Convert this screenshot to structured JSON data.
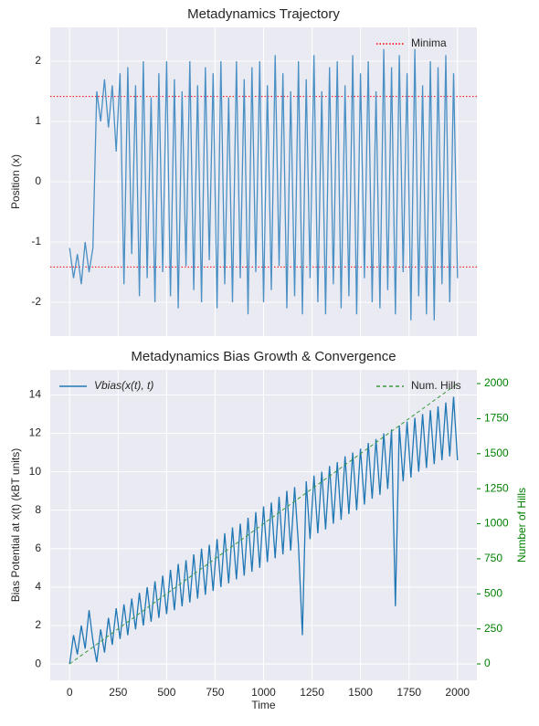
{
  "chart_data": [
    {
      "type": "line",
      "title": "Metadynamics Trajectory",
      "ylabel": "Position (x)",
      "xlim": [
        -100,
        2100
      ],
      "xticks": [
        0,
        250,
        500,
        750,
        1000,
        1250,
        1500,
        1750,
        2000
      ],
      "show_xtick_labels": false,
      "ylim": [
        -2.56,
        2.56
      ],
      "yticks": [
        -2,
        -1,
        0,
        1,
        2
      ],
      "grid": true,
      "legend": "upper right",
      "reference_lines": {
        "name": "Minima",
        "color": "#ff0000",
        "values": [
          1.414,
          -1.414
        ]
      },
      "x": [
        0,
        20,
        40,
        60,
        80,
        100,
        120,
        140,
        160,
        180,
        200,
        220,
        240,
        260,
        280,
        300,
        320,
        340,
        360,
        380,
        400,
        420,
        440,
        460,
        480,
        500,
        520,
        540,
        560,
        580,
        600,
        620,
        640,
        660,
        680,
        700,
        720,
        740,
        760,
        780,
        800,
        820,
        840,
        860,
        880,
        900,
        920,
        940,
        960,
        980,
        1000,
        1020,
        1040,
        1060,
        1080,
        1100,
        1120,
        1140,
        1160,
        1180,
        1200,
        1220,
        1240,
        1260,
        1280,
        1300,
        1320,
        1340,
        1360,
        1380,
        1400,
        1420,
        1440,
        1460,
        1480,
        1500,
        1520,
        1540,
        1560,
        1580,
        1600,
        1620,
        1640,
        1660,
        1680,
        1700,
        1720,
        1740,
        1760,
        1780,
        1800,
        1820,
        1840,
        1860,
        1880,
        1900,
        1920,
        1940,
        1960,
        1980,
        2000
      ],
      "series": [
        {
          "color": "#4a90c4",
          "values": [
            -1.1,
            -1.6,
            -1.2,
            -1.7,
            -1.0,
            -1.5,
            -1.1,
            1.5,
            1.0,
            1.7,
            0.9,
            1.6,
            0.5,
            1.8,
            -1.7,
            1.9,
            -1.2,
            1.6,
            -1.9,
            2.0,
            -1.6,
            1.4,
            -2.0,
            1.8,
            -1.5,
            2.0,
            -1.9,
            1.7,
            -2.1,
            1.5,
            -1.4,
            2.0,
            -1.8,
            1.6,
            -2.0,
            1.9,
            -1.3,
            1.8,
            -2.1,
            2.0,
            -1.7,
            1.4,
            -2.0,
            2.0,
            -1.6,
            1.7,
            -2.2,
            1.9,
            -1.5,
            2.0,
            -2.0,
            1.6,
            -1.8,
            2.1,
            -1.4,
            1.8,
            -2.1,
            1.5,
            -1.9,
            2.0,
            -2.2,
            1.7,
            -1.6,
            2.1,
            -2.0,
            1.5,
            -2.2,
            1.9,
            -1.7,
            2.0,
            -2.1,
            1.6,
            -1.9,
            2.1,
            -2.2,
            1.8,
            -1.6,
            2.0,
            -2.0,
            1.5,
            -2.1,
            2.2,
            -1.8,
            1.9,
            -2.2,
            2.1,
            -1.5,
            1.8,
            -2.3,
            2.2,
            -1.9,
            1.6,
            -2.2,
            2.0,
            -2.3,
            1.9,
            -1.7,
            2.1,
            -2.0,
            1.8,
            -1.6
          ]
        }
      ]
    },
    {
      "type": "line",
      "title": "Metadynamics Bias Growth & Convergence",
      "xlabel": "Time",
      "ylabel": "Bias Potential at x(t) (kBT units)",
      "y2label": "Number of Hills",
      "xlim": [
        -100,
        2100
      ],
      "xticks": [
        0,
        250,
        500,
        750,
        1000,
        1250,
        1500,
        1750,
        2000
      ],
      "show_xtick_labels": true,
      "ylim": [
        -0.85,
        15.3
      ],
      "yticks": [
        0,
        2,
        4,
        6,
        8,
        10,
        12,
        14
      ],
      "y2lim": [
        -117,
        2098
      ],
      "y2ticks": [
        0,
        250,
        500,
        750,
        1000,
        1250,
        1500,
        1750,
        2000
      ],
      "y2color": "#008000",
      "grid": true,
      "x": [
        0,
        20,
        40,
        60,
        80,
        100,
        120,
        140,
        160,
        180,
        200,
        220,
        240,
        260,
        280,
        300,
        320,
        340,
        360,
        380,
        400,
        420,
        440,
        460,
        480,
        500,
        520,
        540,
        560,
        580,
        600,
        620,
        640,
        660,
        680,
        700,
        720,
        740,
        760,
        780,
        800,
        820,
        840,
        860,
        880,
        900,
        920,
        940,
        960,
        980,
        1000,
        1020,
        1040,
        1060,
        1080,
        1100,
        1120,
        1140,
        1160,
        1180,
        1200,
        1220,
        1240,
        1260,
        1280,
        1300,
        1320,
        1340,
        1360,
        1380,
        1400,
        1420,
        1440,
        1460,
        1480,
        1500,
        1520,
        1540,
        1560,
        1580,
        1600,
        1620,
        1640,
        1660,
        1680,
        1700,
        1720,
        1740,
        1760,
        1780,
        1800,
        1820,
        1840,
        1860,
        1880,
        1900,
        1920,
        1940,
        1960,
        1980,
        2000
      ],
      "series": [
        {
          "name": "Vbias(x(t), t)",
          "color": "#1f77b4",
          "legend": "upper left",
          "values": [
            0,
            1.5,
            0.5,
            2.0,
            0.8,
            2.8,
            1.2,
            0.1,
            1.8,
            0.6,
            2.4,
            1.0,
            2.9,
            1.3,
            3.1,
            1.5,
            3.4,
            1.8,
            3.7,
            2.0,
            4.0,
            2.2,
            4.3,
            2.4,
            4.6,
            2.6,
            4.9,
            2.8,
            5.2,
            3.0,
            5.4,
            3.2,
            5.7,
            3.4,
            6.0,
            3.6,
            6.2,
            3.8,
            6.5,
            4.0,
            6.8,
            4.2,
            7.1,
            4.4,
            7.3,
            4.6,
            7.6,
            4.8,
            7.9,
            5.0,
            8.2,
            5.3,
            8.4,
            5.5,
            8.7,
            5.7,
            9.0,
            5.9,
            9.2,
            6.2,
            1.5,
            9.5,
            6.5,
            9.8,
            6.8,
            10.0,
            7.0,
            10.3,
            7.3,
            10.5,
            7.5,
            10.8,
            7.8,
            11.0,
            8.0,
            11.2,
            8.3,
            11.5,
            8.6,
            11.7,
            8.8,
            12.0,
            9.1,
            12.2,
            3.0,
            12.4,
            9.5,
            12.6,
            9.7,
            12.8,
            10.0,
            13.0,
            10.2,
            13.2,
            10.4,
            13.4,
            10.6,
            13.6,
            10.8,
            13.9,
            10.6
          ]
        },
        {
          "name": "Num. Hills",
          "color": "#3a9a3a",
          "dashed": true,
          "axis": "y2",
          "legend": "upper right",
          "x": [
            0,
            2000
          ],
          "values": [
            0,
            2000
          ]
        }
      ]
    }
  ]
}
